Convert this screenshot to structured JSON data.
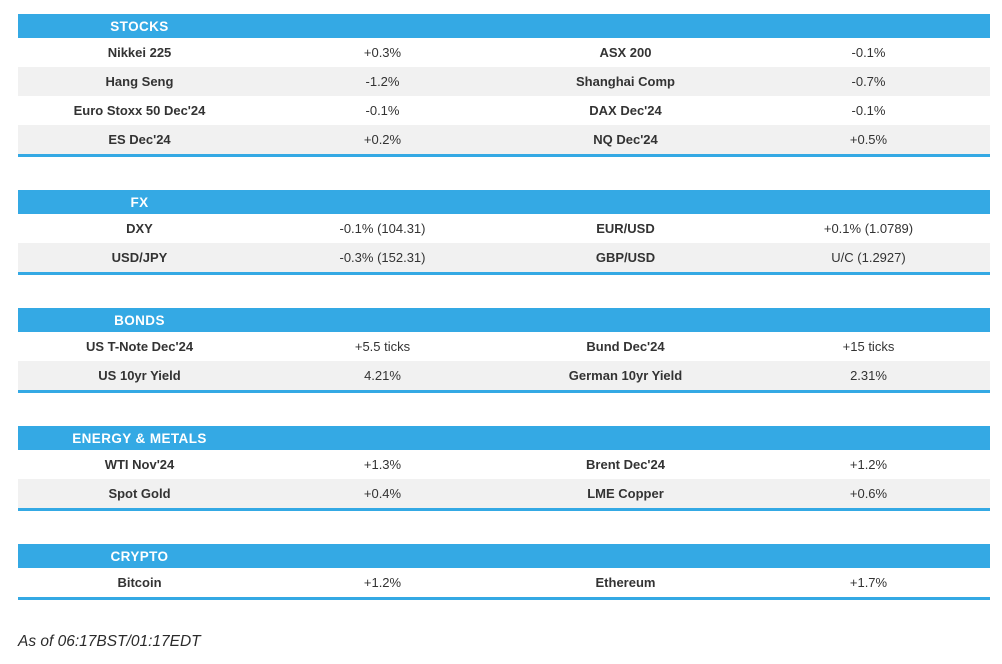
{
  "colors": {
    "accent": "#34a9e4",
    "stripe": "#f1f1f1",
    "text": "#333333",
    "header_text": "#ffffff"
  },
  "sections": [
    {
      "title": "STOCKS",
      "rows": [
        {
          "l1": "Nikkei 225",
          "v1": "+0.3%",
          "l2": "ASX 200",
          "v2": "-0.1%"
        },
        {
          "l1": "Hang Seng",
          "v1": "-1.2%",
          "l2": "Shanghai Comp",
          "v2": "-0.7%"
        },
        {
          "l1": "Euro Stoxx 50 Dec'24",
          "v1": "-0.1%",
          "l2": "DAX Dec'24",
          "v2": "-0.1%"
        },
        {
          "l1": "ES Dec'24",
          "v1": "+0.2%",
          "l2": "NQ Dec'24",
          "v2": "+0.5%"
        }
      ]
    },
    {
      "title": "FX",
      "rows": [
        {
          "l1": "DXY",
          "v1": "-0.1% (104.31)",
          "l2": "EUR/USD",
          "v2": "+0.1% (1.0789)"
        },
        {
          "l1": "USD/JPY",
          "v1": "-0.3% (152.31)",
          "l2": "GBP/USD",
          "v2": "U/C (1.2927)"
        }
      ]
    },
    {
      "title": "BONDS",
      "rows": [
        {
          "l1": "US T-Note Dec'24",
          "v1": "+5.5 ticks",
          "l2": "Bund Dec'24",
          "v2": "+15 ticks"
        },
        {
          "l1": "US 10yr Yield",
          "v1": "4.21%",
          "l2": "German 10yr Yield",
          "v2": "2.31%"
        }
      ]
    },
    {
      "title": "ENERGY & METALS",
      "rows": [
        {
          "l1": "WTI Nov'24",
          "v1": "+1.3%",
          "l2": "Brent Dec'24",
          "v2": "+1.2%"
        },
        {
          "l1": "Spot Gold",
          "v1": "+0.4%",
          "l2": "LME Copper",
          "v2": "+0.6%"
        }
      ]
    },
    {
      "title": "CRYPTO",
      "rows": [
        {
          "l1": "Bitcoin",
          "v1": "+1.2%",
          "l2": "Ethereum",
          "v2": "+1.7%"
        }
      ]
    }
  ],
  "footer": {
    "as_of": "As of 06:17BST/01:17EDT"
  }
}
